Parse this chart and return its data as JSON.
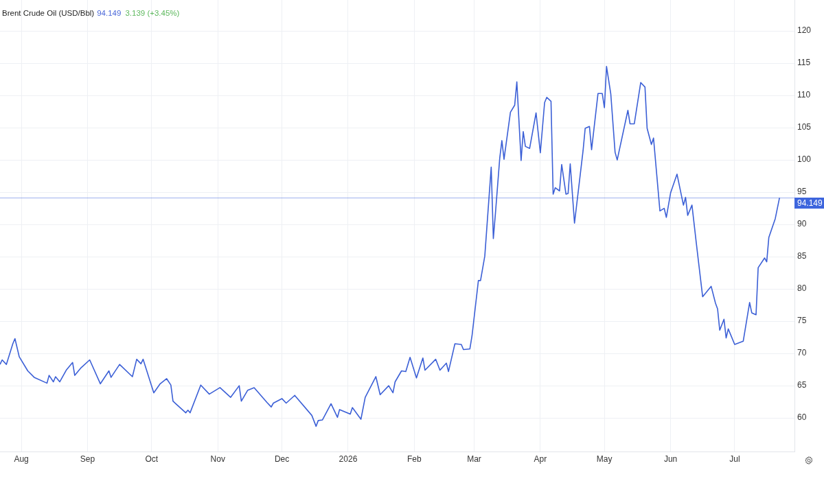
{
  "chart_data": {
    "type": "line",
    "title": "Brent Crude Oil (USD/Bbl)",
    "annotations": [
      "94.149",
      "3.139 (+3.45%)"
    ],
    "x": [
      "2025-07-22",
      "2025-07-23",
      "2025-07-25",
      "2025-07-28",
      "2025-07-29",
      "2025-07-31",
      "2025-08-04",
      "2025-08-07",
      "2025-08-13",
      "2025-08-14",
      "2025-08-16",
      "2025-08-17",
      "2025-08-19",
      "2025-08-22",
      "2025-08-25",
      "2025-08-26",
      "2025-08-29",
      "2025-09-02",
      "2025-09-07",
      "2025-09-11",
      "2025-09-12",
      "2025-09-16",
      "2025-09-22",
      "2025-09-24",
      "2025-09-26",
      "2025-09-27",
      "2025-10-02",
      "2025-10-05",
      "2025-10-08",
      "2025-10-10",
      "2025-10-11",
      "2025-10-17",
      "2025-10-18",
      "2025-10-19",
      "2025-10-24",
      "2025-10-28",
      "2025-11-02",
      "2025-11-07",
      "2025-11-11",
      "2025-11-12",
      "2025-11-15",
      "2025-11-18",
      "2025-11-24",
      "2025-11-26",
      "2025-11-27",
      "2025-12-01",
      "2025-12-03",
      "2025-12-07",
      "2025-12-15",
      "2025-12-17",
      "2025-12-18",
      "2025-12-20",
      "2025-12-24",
      "2025-12-27",
      "2025-12-28",
      "2026-01-02",
      "2026-01-03",
      "2026-01-07",
      "2026-01-09",
      "2026-01-14",
      "2026-01-16",
      "2026-01-20",
      "2026-01-22",
      "2026-01-23",
      "2026-01-26",
      "2026-01-28",
      "2026-01-30",
      "2026-02-02",
      "2026-02-05",
      "2026-02-06",
      "2026-02-11",
      "2026-02-13",
      "2026-02-16",
      "2026-02-17",
      "2026-02-20",
      "2026-02-23",
      "2026-02-24",
      "2026-02-27",
      "2026-02-28",
      "2026-03-03",
      "2026-03-04",
      "2026-03-06",
      "2026-03-09",
      "2026-03-10",
      "2026-03-11",
      "2026-03-13",
      "2026-03-14",
      "2026-03-15",
      "2026-03-18",
      "2026-03-20",
      "2026-03-21",
      "2026-03-23",
      "2026-03-24",
      "2026-03-25",
      "2026-03-27",
      "2026-03-30",
      "2026-04-01",
      "2026-04-03",
      "2026-04-04",
      "2026-04-06",
      "2026-04-07",
      "2026-04-08",
      "2026-04-10",
      "2026-04-11",
      "2026-04-13",
      "2026-04-14",
      "2026-04-15",
      "2026-04-17",
      "2026-04-21",
      "2026-04-22",
      "2026-04-24",
      "2026-04-25",
      "2026-04-28",
      "2026-04-30",
      "2026-05-01",
      "2026-05-02",
      "2026-05-04",
      "2026-05-06",
      "2026-05-07",
      "2026-05-12",
      "2026-05-13",
      "2026-05-15",
      "2026-05-18",
      "2026-05-20",
      "2026-05-21",
      "2026-05-23",
      "2026-05-24",
      "2026-05-27",
      "2026-05-29",
      "2026-05-30",
      "2026-06-01",
      "2026-06-04",
      "2026-06-07",
      "2026-06-08",
      "2026-06-09",
      "2026-06-11",
      "2026-06-13",
      "2026-06-16",
      "2026-06-20",
      "2026-06-22",
      "2026-06-23",
      "2026-06-24",
      "2026-06-26",
      "2026-06-27",
      "2026-06-28",
      "2026-07-01",
      "2026-07-05",
      "2026-07-08",
      "2026-07-09",
      "2026-07-11",
      "2026-07-12",
      "2026-07-15",
      "2026-07-16",
      "2026-07-17",
      "2026-07-20",
      "2026-07-22"
    ],
    "values": [
      68.3,
      69.0,
      68.3,
      71.5,
      72.3,
      69.5,
      67.3,
      66.3,
      65.4,
      66.6,
      65.6,
      66.4,
      65.6,
      67.4,
      68.6,
      66.6,
      67.8,
      69.0,
      65.3,
      67.3,
      66.3,
      68.3,
      66.4,
      69.1,
      68.4,
      69.1,
      63.9,
      65.3,
      66.1,
      65.1,
      62.6,
      60.8,
      61.2,
      60.8,
      65.1,
      63.7,
      64.7,
      63.2,
      65.0,
      62.6,
      64.3,
      64.7,
      62.4,
      61.7,
      62.3,
      63.0,
      62.3,
      63.5,
      60.4,
      58.7,
      59.6,
      59.7,
      62.2,
      60.1,
      61.3,
      60.6,
      61.6,
      59.8,
      63.2,
      66.4,
      63.6,
      65.0,
      63.9,
      65.6,
      67.3,
      67.2,
      69.4,
      66.2,
      69.3,
      67.4,
      69.1,
      67.4,
      68.5,
      67.2,
      71.5,
      71.4,
      70.6,
      70.7,
      72.7,
      81.3,
      81.3,
      85.1,
      98.9,
      87.8,
      91.8,
      100.3,
      103.0,
      100.1,
      107.4,
      108.5,
      112.1,
      99.9,
      104.4,
      102.1,
      101.8,
      107.3,
      101.1,
      108.9,
      109.7,
      109.1,
      94.7,
      95.7,
      95.2,
      99.3,
      94.7,
      94.8,
      99.4,
      90.2,
      101.4,
      104.9,
      105.2,
      101.6,
      110.3,
      110.3,
      108.1,
      114.5,
      110.2,
      101.2,
      100.0,
      107.7,
      105.6,
      105.6,
      112.0,
      111.3,
      104.9,
      102.4,
      103.4,
      92.1,
      92.5,
      91.1,
      94.9,
      97.8,
      93.0,
      94.2,
      91.4,
      93.0,
      87.2,
      78.8,
      80.4,
      77.8,
      76.9,
      73.6,
      75.3,
      72.4,
      73.8,
      71.4,
      71.9,
      77.9,
      76.3,
      76.0,
      83.3,
      84.8,
      84.2,
      88.0,
      90.9,
      94.149
    ],
    "color": "#3b5fd6",
    "xlim": [
      "2025-07-22",
      "2026-07-29"
    ],
    "xticks": [
      {
        "value": "2025-08-01",
        "label": "Aug"
      },
      {
        "value": "2025-09-01",
        "label": "Sep"
      },
      {
        "value": "2025-10-01",
        "label": "Oct"
      },
      {
        "value": "2025-11-01",
        "label": "Nov"
      },
      {
        "value": "2025-12-01",
        "label": "Dec"
      },
      {
        "value": "2026-01-01",
        "label": "2026"
      },
      {
        "value": "2026-02-01",
        "label": "Feb"
      },
      {
        "value": "2026-03-01",
        "label": "Mar"
      },
      {
        "value": "2026-04-01",
        "label": "Apr"
      },
      {
        "value": "2026-05-01",
        "label": "May"
      },
      {
        "value": "2026-06-01",
        "label": "Jun"
      },
      {
        "value": "2026-07-01",
        "label": "Jul"
      }
    ],
    "ylim": [
      54.8,
      124.8
    ],
    "yticks": [
      60,
      65,
      70,
      75,
      80,
      85,
      90,
      95,
      100,
      105,
      110,
      115,
      120
    ],
    "grid": true,
    "ref_lines": [
      {
        "axis": "y",
        "value": 94.149,
        "label": "94.149",
        "color": "#3d65dd"
      }
    ]
  }
}
